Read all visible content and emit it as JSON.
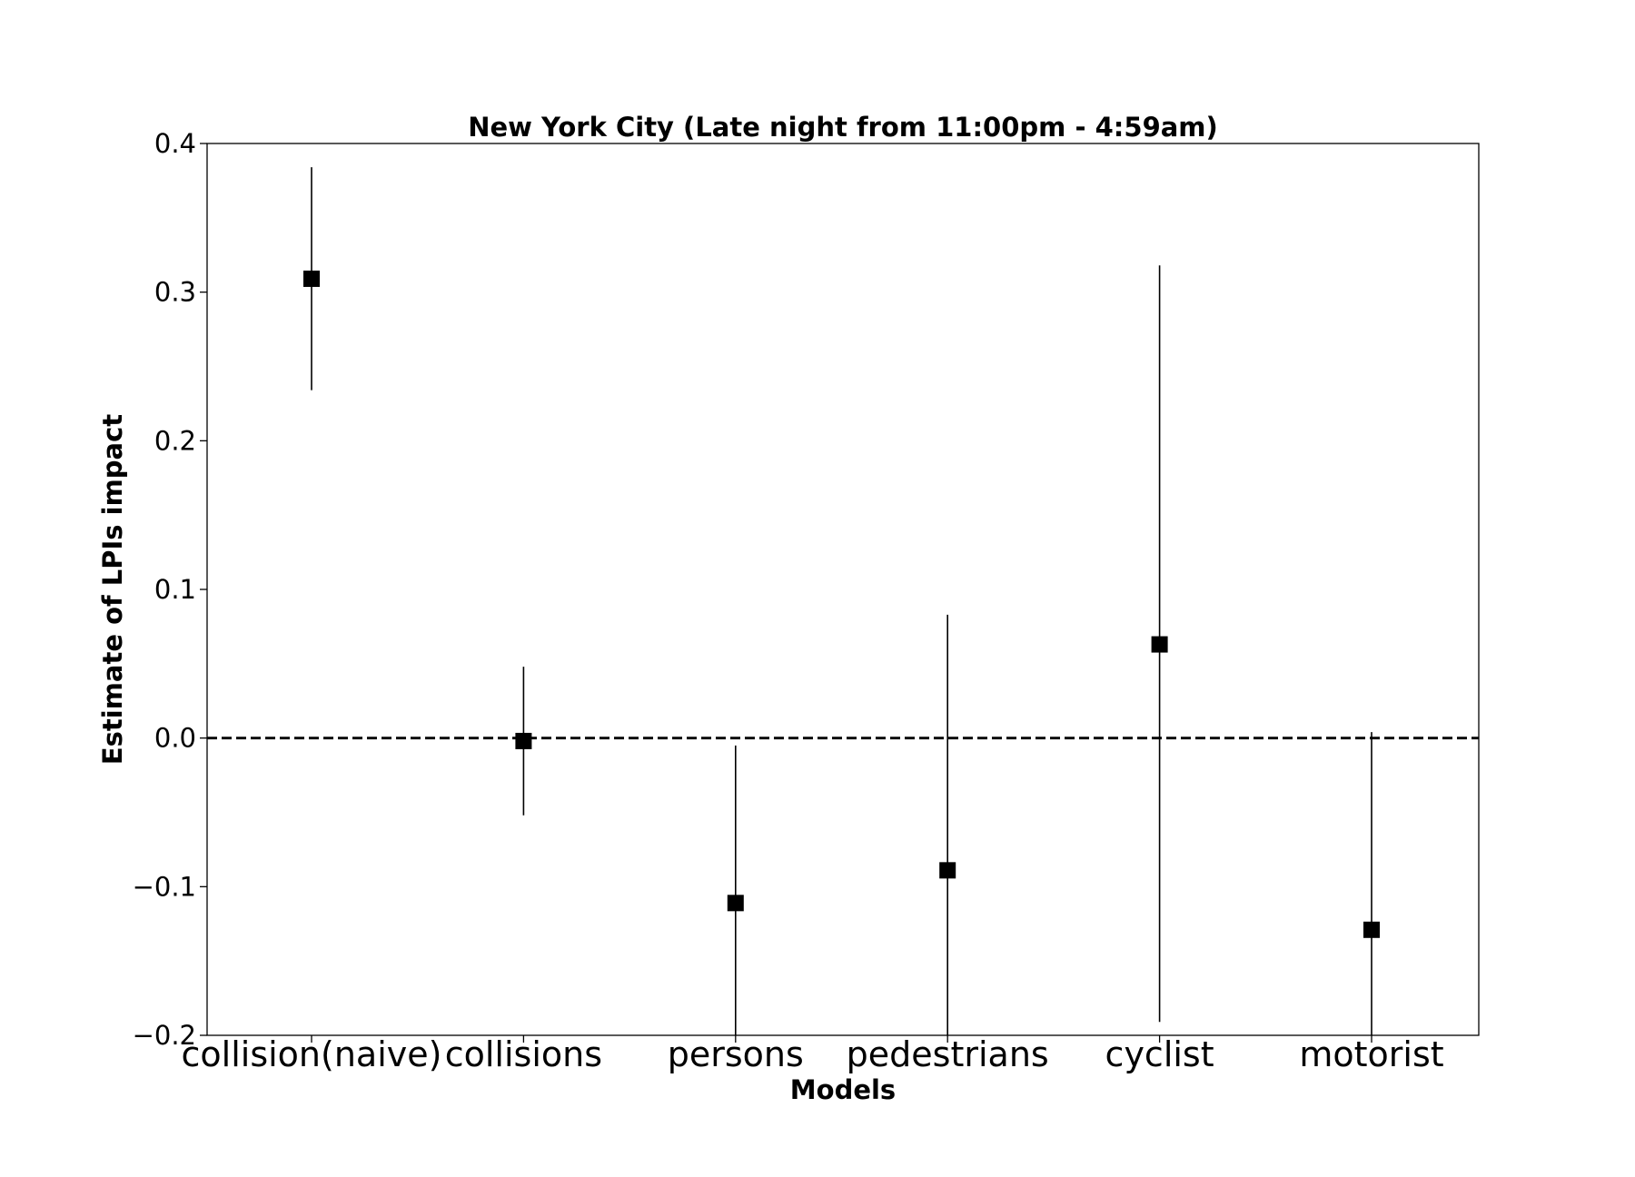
{
  "chart_data": {
    "type": "scatter",
    "title": "New York City (Late night from 11:00pm - 4:59am)",
    "xlabel": "Models",
    "ylabel": "Estimate of LPIs impact",
    "categories": [
      "collision(naive)",
      "collisions",
      "persons",
      "pedestrians",
      "cyclist",
      "motorist"
    ],
    "estimates": [
      0.309,
      -0.002,
      -0.111,
      -0.089,
      0.063,
      -0.129
    ],
    "ci_lower": [
      0.234,
      -0.052,
      -0.2,
      -0.2,
      -0.191,
      -0.2
    ],
    "ci_upper": [
      0.384,
      0.048,
      -0.005,
      0.083,
      0.318,
      0.004
    ],
    "ylim": [
      -0.2,
      0.4
    ],
    "yticks": [
      -0.2,
      -0.1,
      0.0,
      0.1,
      0.2,
      0.3,
      0.4
    ],
    "ytick_labels": [
      "−0.2",
      "−0.1",
      "0.0",
      "0.1",
      "0.2",
      "0.3",
      "0.4"
    ],
    "reference_line": 0.0,
    "grid": false,
    "marker": "square",
    "marker_color": "#000000"
  }
}
